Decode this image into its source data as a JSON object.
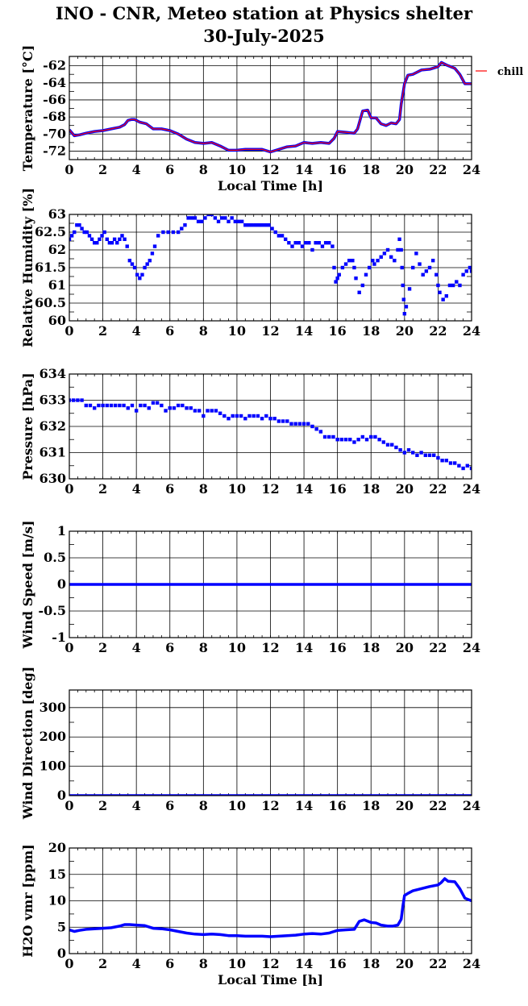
{
  "page": {
    "title": "INO - CNR, Meteo station at Physics shelter",
    "date": "30-July-2025"
  },
  "chart_data": [
    {
      "type": "line",
      "ylabel": "Temperature [°C]",
      "xlabel": "Local Time [h]",
      "xlim": [
        0,
        24
      ],
      "xticks": [
        0,
        2,
        4,
        6,
        8,
        10,
        12,
        14,
        16,
        18,
        20,
        22,
        24
      ],
      "ylim": [
        -73,
        -60.9
      ],
      "yticks": [
        -72,
        -70,
        -68,
        -66,
        -64,
        -62
      ],
      "legend": "chill",
      "legend_position": "right",
      "series": [
        {
          "color": "#0000ff",
          "x": [
            0,
            0.3,
            0.6,
            1,
            1.5,
            2,
            2.5,
            3,
            3.3,
            3.5,
            3.7,
            3.9,
            4.2,
            4.6,
            5,
            5.5,
            6,
            6.5,
            7,
            7.5,
            8,
            8.5,
            9,
            9.5,
            10,
            10.5,
            11,
            11.5,
            12,
            12.5,
            13,
            13.5,
            14,
            14.5,
            15,
            15.5,
            15.8,
            16,
            16.5,
            17,
            17.2,
            17.5,
            17.8,
            18,
            18.3,
            18.6,
            18.9,
            19.2,
            19.5,
            19.7,
            19.8,
            19.9,
            20,
            20.2,
            20.5,
            21,
            21.5,
            22,
            22.2,
            22.5,
            23,
            23.3,
            23.6,
            24
          ],
          "y": [
            -69.5,
            -70.2,
            -70.1,
            -69.9,
            -69.7,
            -69.6,
            -69.4,
            -69.2,
            -68.9,
            -68.4,
            -68.3,
            -68.3,
            -68.6,
            -68.8,
            -69.4,
            -69.4,
            -69.6,
            -70.0,
            -70.6,
            -71.0,
            -71.1,
            -71.0,
            -71.4,
            -71.9,
            -71.9,
            -71.8,
            -71.8,
            -71.8,
            -72.1,
            -71.8,
            -71.5,
            -71.4,
            -71.0,
            -71.1,
            -71.0,
            -71.1,
            -70.5,
            -69.7,
            -69.8,
            -69.9,
            -69.4,
            -67.3,
            -67.2,
            -68.1,
            -68.1,
            -68.8,
            -69.0,
            -68.7,
            -68.8,
            -68.3,
            -66.5,
            -65.3,
            -64.1,
            -63.1,
            -63.0,
            -62.5,
            -62.4,
            -62.1,
            -61.6,
            -61.9,
            -62.3,
            -63.0,
            -64.1,
            -64.1
          ]
        },
        {
          "name": "chill",
          "color": "#ff0000",
          "x": [
            0,
            0.3,
            0.6,
            1,
            1.5,
            2,
            2.5,
            3,
            3.3,
            3.5,
            3.7,
            3.9,
            4.2,
            4.6,
            5,
            5.5,
            6,
            6.5,
            7,
            7.5,
            8,
            8.5,
            9,
            9.5,
            10,
            10.5,
            11,
            11.5,
            12,
            12.5,
            13,
            13.5,
            14,
            14.5,
            15,
            15.5,
            15.8,
            16,
            16.5,
            17,
            17.2,
            17.5,
            17.8,
            18,
            18.3,
            18.6,
            18.9,
            19.2,
            19.5,
            19.7,
            19.8,
            19.9,
            20,
            20.2,
            20.5,
            21,
            21.5,
            22,
            22.2,
            22.5,
            23,
            23.3,
            23.6,
            24
          ],
          "y": [
            -69.5,
            -70.2,
            -70.1,
            -69.9,
            -69.7,
            -69.6,
            -69.4,
            -69.2,
            -68.9,
            -68.4,
            -68.3,
            -68.3,
            -68.6,
            -68.8,
            -69.4,
            -69.4,
            -69.6,
            -70.0,
            -70.6,
            -71.0,
            -71.1,
            -71.0,
            -71.4,
            -71.9,
            -71.9,
            -71.8,
            -71.8,
            -71.8,
            -72.1,
            -71.8,
            -71.5,
            -71.4,
            -71.0,
            -71.1,
            -71.0,
            -71.1,
            -70.5,
            -69.7,
            -69.8,
            -69.9,
            -69.4,
            -67.3,
            -67.2,
            -68.1,
            -68.1,
            -68.8,
            -69.0,
            -68.7,
            -68.8,
            -68.3,
            -66.5,
            -65.3,
            -64.1,
            -63.1,
            -63.0,
            -62.5,
            -62.4,
            -62.1,
            -61.6,
            -61.9,
            -62.3,
            -63.0,
            -64.1,
            -64.1
          ]
        }
      ]
    },
    {
      "type": "scatter",
      "ylabel": "Relative Humidity [%]",
      "xlim": [
        0,
        24
      ],
      "xticks": [
        0,
        2,
        4,
        6,
        8,
        10,
        12,
        14,
        16,
        18,
        20,
        22,
        24
      ],
      "ylim": [
        60,
        63
      ],
      "yticks": [
        60,
        60.5,
        61,
        61.5,
        62,
        62.5,
        63
      ],
      "series": [
        {
          "color": "#0000ff",
          "x": [
            0,
            0.15,
            0.3,
            0.45,
            0.6,
            0.75,
            0.9,
            1.05,
            1.2,
            1.35,
            1.5,
            1.65,
            1.8,
            1.95,
            2.1,
            2.25,
            2.4,
            2.55,
            2.7,
            2.85,
            3.0,
            3.15,
            3.3,
            3.45,
            3.6,
            3.75,
            3.9,
            4.05,
            4.2,
            4.35,
            4.5,
            4.65,
            4.8,
            4.95,
            5.1,
            5.3,
            5.6,
            5.9,
            6.2,
            6.5,
            6.7,
            6.9,
            7.1,
            7.3,
            7.5,
            7.7,
            7.9,
            8.1,
            8.3,
            8.5,
            8.7,
            8.9,
            9.1,
            9.3,
            9.5,
            9.7,
            9.9,
            10.1,
            10.3,
            10.5,
            10.7,
            10.9,
            11.1,
            11.3,
            11.5,
            11.7,
            11.9,
            12.1,
            12.3,
            12.5,
            12.7,
            12.9,
            13.1,
            13.3,
            13.5,
            13.7,
            13.9,
            14.1,
            14.3,
            14.5,
            14.7,
            14.9,
            15.1,
            15.3,
            15.5,
            15.7,
            15.8,
            15.9,
            16.0,
            16.1,
            16.3,
            16.5,
            16.7,
            16.9,
            17.0,
            17.1,
            17.3,
            17.5,
            17.7,
            17.9,
            18.1,
            18.2,
            18.4,
            18.6,
            18.8,
            19.0,
            19.2,
            19.4,
            19.6,
            19.7,
            19.8,
            19.85,
            19.9,
            19.95,
            20.0,
            20.1,
            20.3,
            20.5,
            20.7,
            20.9,
            21.1,
            21.3,
            21.5,
            21.7,
            21.9,
            22.0,
            22.1,
            22.3,
            22.5,
            22.7,
            22.9,
            23.1,
            23.3,
            23.5,
            23.7,
            23.9,
            24.0
          ],
          "y": [
            62.3,
            62.4,
            62.5,
            62.7,
            62.7,
            62.6,
            62.5,
            62.5,
            62.4,
            62.3,
            62.2,
            62.2,
            62.3,
            62.4,
            62.5,
            62.3,
            62.2,
            62.2,
            62.3,
            62.2,
            62.3,
            62.4,
            62.3,
            62.1,
            61.7,
            61.6,
            61.5,
            61.3,
            61.2,
            61.3,
            61.5,
            61.6,
            61.7,
            61.9,
            62.1,
            62.4,
            62.5,
            62.5,
            62.5,
            62.5,
            62.6,
            62.7,
            62.9,
            62.9,
            62.9,
            62.8,
            62.8,
            62.9,
            63.0,
            63.0,
            62.9,
            62.8,
            62.9,
            62.9,
            62.8,
            62.9,
            62.8,
            62.8,
            62.8,
            62.7,
            62.7,
            62.7,
            62.7,
            62.7,
            62.7,
            62.7,
            62.7,
            62.6,
            62.5,
            62.4,
            62.4,
            62.3,
            62.2,
            62.1,
            62.2,
            62.2,
            62.1,
            62.2,
            62.2,
            62.0,
            62.2,
            62.2,
            62.1,
            62.2,
            62.2,
            62.1,
            61.5,
            61.1,
            61.2,
            61.3,
            61.5,
            61.6,
            61.7,
            61.7,
            61.5,
            61.2,
            60.8,
            61.0,
            61.3,
            61.5,
            61.7,
            61.6,
            61.7,
            61.8,
            61.9,
            62.0,
            61.8,
            61.7,
            62.0,
            62.3,
            62.0,
            61.5,
            61.0,
            60.6,
            60.2,
            60.4,
            60.9,
            61.5,
            61.9,
            61.6,
            61.3,
            61.4,
            61.5,
            61.7,
            61.3,
            61.0,
            60.8,
            60.6,
            60.7,
            61.0,
            61.0,
            61.1,
            61.0,
            61.3,
            61.4,
            61.5,
            61.4
          ]
        }
      ]
    },
    {
      "type": "scatter",
      "ylabel": "Pressure [hPa]",
      "xlim": [
        0,
        24
      ],
      "xticks": [
        0,
        2,
        4,
        6,
        8,
        10,
        12,
        14,
        16,
        18,
        20,
        22,
        24
      ],
      "ylim": [
        630,
        634
      ],
      "yticks": [
        630,
        631,
        632,
        633,
        634
      ],
      "series": [
        {
          "color": "#0000ff",
          "x": [
            0,
            0.25,
            0.5,
            0.75,
            1.0,
            1.25,
            1.5,
            1.75,
            2.0,
            2.25,
            2.5,
            2.75,
            3.0,
            3.25,
            3.5,
            3.75,
            4.0,
            4.25,
            4.5,
            4.75,
            5.0,
            5.25,
            5.5,
            5.75,
            6.0,
            6.25,
            6.5,
            6.75,
            7.0,
            7.25,
            7.5,
            7.75,
            8.0,
            8.25,
            8.5,
            8.75,
            9.0,
            9.25,
            9.5,
            9.75,
            10.0,
            10.25,
            10.5,
            10.75,
            11.0,
            11.25,
            11.5,
            11.75,
            12.0,
            12.25,
            12.5,
            12.75,
            13.0,
            13.25,
            13.5,
            13.75,
            14.0,
            14.25,
            14.5,
            14.75,
            15.0,
            15.25,
            15.5,
            15.75,
            16.0,
            16.25,
            16.5,
            16.75,
            17.0,
            17.25,
            17.5,
            17.75,
            18.0,
            18.25,
            18.5,
            18.75,
            19.0,
            19.25,
            19.5,
            19.75,
            20.0,
            20.25,
            20.5,
            20.75,
            21.0,
            21.25,
            21.5,
            21.75,
            22.0,
            22.25,
            22.5,
            22.75,
            23.0,
            23.25,
            23.5,
            23.75,
            24.0
          ],
          "y": [
            633.0,
            633.0,
            633.0,
            633.0,
            632.8,
            632.8,
            632.7,
            632.8,
            632.8,
            632.8,
            632.8,
            632.8,
            632.8,
            632.8,
            632.7,
            632.8,
            632.6,
            632.8,
            632.8,
            632.7,
            632.9,
            632.9,
            632.8,
            632.6,
            632.7,
            632.7,
            632.8,
            632.8,
            632.7,
            632.7,
            632.6,
            632.6,
            632.4,
            632.6,
            632.6,
            632.6,
            632.5,
            632.4,
            632.3,
            632.4,
            632.4,
            632.4,
            632.3,
            632.4,
            632.4,
            632.4,
            632.3,
            632.4,
            632.3,
            632.3,
            632.2,
            632.2,
            632.2,
            632.1,
            632.1,
            632.1,
            632.1,
            632.1,
            632.0,
            631.9,
            631.8,
            631.6,
            631.6,
            631.6,
            631.5,
            631.5,
            631.5,
            631.5,
            631.4,
            631.5,
            631.6,
            631.5,
            631.6,
            631.6,
            631.5,
            631.4,
            631.3,
            631.3,
            631.2,
            631.1,
            631.0,
            631.1,
            631.0,
            630.9,
            631.0,
            630.9,
            630.9,
            630.9,
            630.8,
            630.7,
            630.7,
            630.6,
            630.6,
            630.5,
            630.4,
            630.5,
            630.4
          ]
        }
      ]
    },
    {
      "type": "line",
      "ylabel": "Wind Speed [m/s]",
      "xlim": [
        0,
        24
      ],
      "xticks": [
        0,
        2,
        4,
        6,
        8,
        10,
        12,
        14,
        16,
        18,
        20,
        22,
        24
      ],
      "ylim": [
        -1,
        1
      ],
      "yticks": [
        -1,
        -0.5,
        0,
        0.5,
        1
      ],
      "series": [
        {
          "color": "#0000ff",
          "x": [
            0,
            24
          ],
          "y": [
            0,
            0
          ]
        }
      ]
    },
    {
      "type": "line",
      "ylabel": "Wind Direction [deg]",
      "xlim": [
        0,
        24
      ],
      "xticks": [
        0,
        2,
        4,
        6,
        8,
        10,
        12,
        14,
        16,
        18,
        20,
        22,
        24
      ],
      "ylim": [
        0,
        360
      ],
      "yticks": [
        0,
        100,
        200,
        300
      ],
      "series": [
        {
          "color": "#0000ff",
          "x": [
            0,
            24
          ],
          "y": [
            0,
            0
          ]
        }
      ]
    },
    {
      "type": "line",
      "ylabel": "H2O vmr [ppm]",
      "xlabel": "Local Time [h]",
      "xlim": [
        0,
        24
      ],
      "xticks": [
        0,
        2,
        4,
        6,
        8,
        10,
        12,
        14,
        16,
        18,
        20,
        22,
        24
      ],
      "ylim": [
        0,
        20
      ],
      "yticks": [
        0,
        5,
        10,
        15,
        20
      ],
      "series": [
        {
          "color": "#0000ff",
          "x": [
            0,
            0.3,
            0.6,
            1,
            1.5,
            2,
            2.5,
            3,
            3.3,
            3.6,
            4,
            4.5,
            5,
            5.5,
            6,
            6.5,
            7,
            7.5,
            8,
            8.5,
            9,
            9.5,
            10,
            10.5,
            11,
            11.5,
            12,
            12.5,
            13,
            13.5,
            14,
            14.5,
            15,
            15.5,
            16,
            16.5,
            17,
            17.3,
            17.6,
            18,
            18.3,
            18.6,
            19,
            19.3,
            19.6,
            19.8,
            19.9,
            20,
            20.2,
            20.5,
            21,
            21.5,
            22,
            22.2,
            22.4,
            22.6,
            23,
            23.3,
            23.6,
            24
          ],
          "y": [
            4.5,
            4.2,
            4.4,
            4.6,
            4.7,
            4.8,
            4.9,
            5.2,
            5.5,
            5.5,
            5.4,
            5.3,
            4.8,
            4.7,
            4.5,
            4.2,
            3.9,
            3.7,
            3.6,
            3.7,
            3.6,
            3.4,
            3.4,
            3.3,
            3.3,
            3.3,
            3.2,
            3.3,
            3.4,
            3.5,
            3.7,
            3.8,
            3.7,
            3.9,
            4.4,
            4.5,
            4.6,
            6.1,
            6.4,
            5.9,
            5.8,
            5.4,
            5.2,
            5.2,
            5.4,
            6.5,
            9.0,
            11.0,
            11.4,
            11.9,
            12.3,
            12.7,
            13.0,
            13.5,
            14.2,
            13.7,
            13.6,
            12.3,
            10.5,
            10.0
          ]
        }
      ]
    }
  ]
}
